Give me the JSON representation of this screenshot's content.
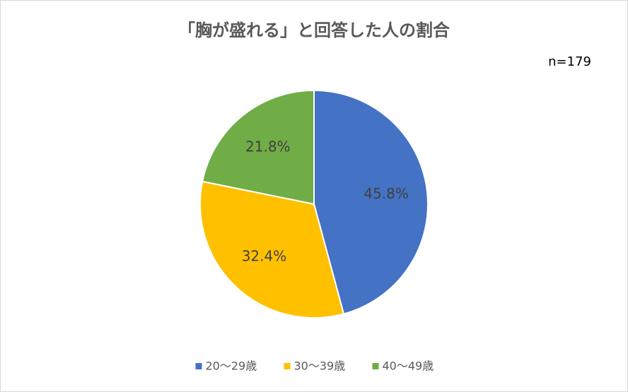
{
  "chart_data": {
    "type": "pie",
    "title": "「胸が盛れる」と回答した人の割合",
    "annotation": "n=179",
    "categories": [
      "20～29歳",
      "30～39歳",
      "40～49歳"
    ],
    "values": [
      45.8,
      32.4,
      21.8
    ],
    "value_labels": [
      "45.8%",
      "32.4%",
      "21.8%"
    ],
    "colors": [
      "#4472c4",
      "#ffc000",
      "#70ad47"
    ],
    "legend": "bottom"
  }
}
